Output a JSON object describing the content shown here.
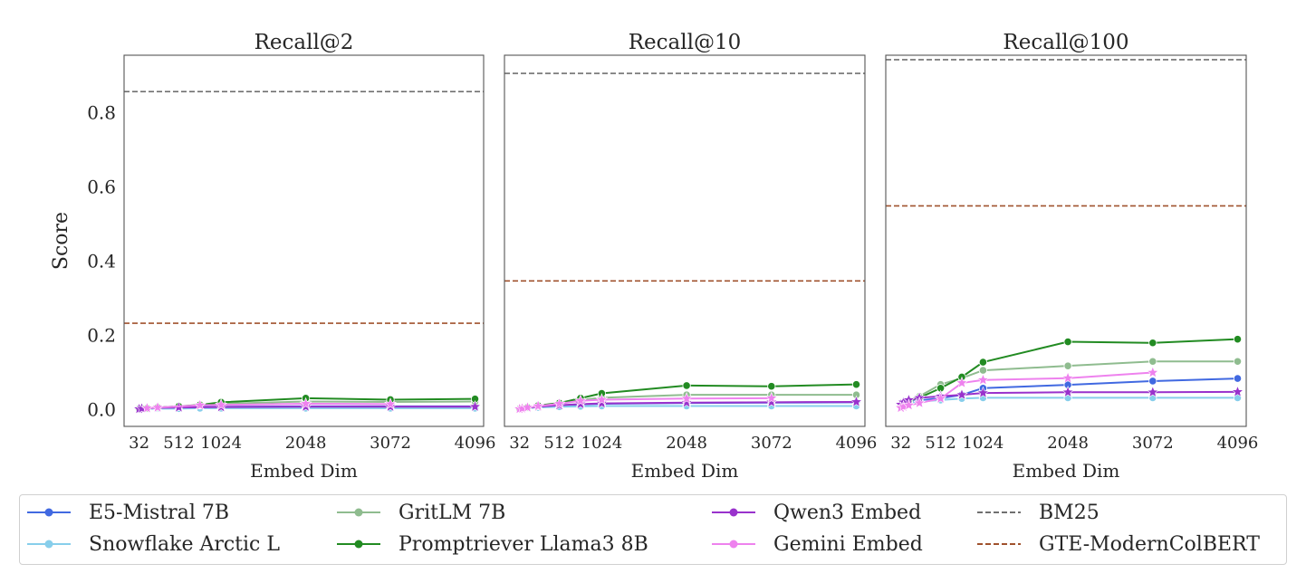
{
  "chart_data": [
    {
      "type": "line",
      "title": "Recall@2",
      "xlabel": "Embed Dim",
      "ylabel": "Score",
      "xlim": [
        -150,
        4200
      ],
      "ylim": [
        -0.045,
        0.955
      ],
      "x_ticks": [
        32,
        512,
        1024,
        2048,
        3072,
        4096
      ],
      "y_ticks": [
        0.0,
        0.2,
        0.4,
        0.6,
        0.8
      ],
      "y_tick_labels": [
        "0.0",
        "0.2",
        "0.4",
        "0.6",
        "0.8"
      ],
      "grid": false,
      "series": [
        {
          "name": "E5-Mistral 7B",
          "color": "#4169e1",
          "marker": "circle",
          "x": [
            32,
            64,
            128,
            256,
            512,
            768,
            1024,
            2048,
            3072,
            4096
          ],
          "y": [
            0.002,
            0.003,
            0.004,
            0.005,
            0.006,
            0.007,
            0.008,
            0.009,
            0.009,
            0.009
          ]
        },
        {
          "name": "Snowflake Arctic L",
          "color": "#87ceeb",
          "marker": "circle",
          "x": [
            32,
            64,
            128,
            256,
            512,
            768,
            1024,
            2048,
            3072,
            4096
          ],
          "y": [
            0.001,
            0.002,
            0.002,
            0.003,
            0.003,
            0.004,
            0.004,
            0.004,
            0.004,
            0.004
          ]
        },
        {
          "name": "GritLM 7B",
          "color": "#8fbc8f",
          "marker": "circle",
          "x": [
            32,
            64,
            128,
            256,
            512,
            768,
            1024,
            2048,
            3072,
            4096
          ],
          "y": [
            0.002,
            0.003,
            0.004,
            0.006,
            0.008,
            0.012,
            0.016,
            0.022,
            0.021,
            0.022
          ]
        },
        {
          "name": "Promptriever Llama3 8B",
          "color": "#228b22",
          "marker": "circle",
          "x": [
            32,
            64,
            128,
            256,
            512,
            768,
            1024,
            2048,
            3072,
            4096
          ],
          "y": [
            0.002,
            0.003,
            0.004,
            0.006,
            0.009,
            0.013,
            0.02,
            0.031,
            0.027,
            0.029
          ]
        },
        {
          "name": "Qwen3 Embed",
          "color": "#9932cc",
          "marker": "star",
          "x": [
            32,
            64,
            128,
            256,
            512,
            1024,
            2048,
            3072,
            4096
          ],
          "y": [
            0.002,
            0.003,
            0.004,
            0.005,
            0.006,
            0.007,
            0.008,
            0.008,
            0.008
          ]
        },
        {
          "name": "Gemini Embed",
          "color": "#ee82ee",
          "marker": "star",
          "x": [
            128,
            256,
            768,
            1024,
            2048,
            3072
          ],
          "y": [
            0.004,
            0.006,
            0.012,
            0.013,
            0.016,
            0.015
          ]
        }
      ],
      "baselines": [
        {
          "name": "BM25",
          "color": "#707070",
          "value": 0.857
        },
        {
          "name": "GTE-ModernColBERT",
          "color": "#a0522d",
          "value": 0.233
        }
      ]
    },
    {
      "type": "line",
      "title": "Recall@10",
      "xlabel": "Embed Dim",
      "ylabel": "",
      "xlim": [
        -150,
        4200
      ],
      "ylim": [
        -0.045,
        0.955
      ],
      "x_ticks": [
        32,
        512,
        1024,
        2048,
        3072,
        4096
      ],
      "grid": false,
      "series": [
        {
          "name": "E5-Mistral 7B",
          "color": "#4169e1",
          "marker": "circle",
          "x": [
            32,
            64,
            128,
            256,
            512,
            768,
            1024,
            2048,
            3072,
            4096
          ],
          "y": [
            0.002,
            0.003,
            0.005,
            0.008,
            0.011,
            0.014,
            0.016,
            0.018,
            0.019,
            0.02
          ]
        },
        {
          "name": "Snowflake Arctic L",
          "color": "#87ceeb",
          "marker": "circle",
          "x": [
            32,
            64,
            128,
            256,
            512,
            768,
            1024,
            2048,
            3072,
            4096
          ],
          "y": [
            0.001,
            0.002,
            0.004,
            0.006,
            0.008,
            0.009,
            0.01,
            0.01,
            0.01,
            0.01
          ]
        },
        {
          "name": "GritLM 7B",
          "color": "#8fbc8f",
          "marker": "circle",
          "x": [
            32,
            64,
            128,
            256,
            512,
            768,
            1024,
            2048,
            3072,
            4096
          ],
          "y": [
            0.002,
            0.003,
            0.006,
            0.01,
            0.016,
            0.026,
            0.032,
            0.04,
            0.04,
            0.04
          ]
        },
        {
          "name": "Promptriever Llama3 8B",
          "color": "#228b22",
          "marker": "circle",
          "x": [
            32,
            64,
            128,
            256,
            512,
            768,
            1024,
            2048,
            3072,
            4096
          ],
          "y": [
            0.002,
            0.003,
            0.006,
            0.011,
            0.018,
            0.031,
            0.044,
            0.065,
            0.063,
            0.068
          ]
        },
        {
          "name": "Qwen3 Embed",
          "color": "#9932cc",
          "marker": "star",
          "x": [
            32,
            64,
            128,
            256,
            512,
            768,
            1024,
            2048,
            3072,
            4096
          ],
          "y": [
            0.002,
            0.003,
            0.005,
            0.008,
            0.012,
            0.015,
            0.017,
            0.019,
            0.02,
            0.021
          ]
        },
        {
          "name": "Gemini Embed",
          "color": "#ee82ee",
          "marker": "star",
          "x": [
            32,
            64,
            128,
            256,
            512,
            768,
            1024,
            2048,
            3072
          ],
          "y": [
            0.002,
            0.003,
            0.006,
            0.01,
            0.016,
            0.024,
            0.027,
            0.03,
            0.031
          ]
        }
      ],
      "baselines": [
        {
          "name": "BM25",
          "color": "#707070",
          "value": 0.906
        },
        {
          "name": "GTE-ModernColBERT",
          "color": "#a0522d",
          "value": 0.347
        }
      ]
    },
    {
      "type": "line",
      "title": "Recall@100",
      "xlabel": "Embed Dim",
      "ylabel": "",
      "xlim": [
        -150,
        4200
      ],
      "ylim": [
        -0.045,
        0.955
      ],
      "x_ticks": [
        32,
        512,
        1024,
        2048,
        3072,
        4096
      ],
      "grid": false,
      "series": [
        {
          "name": "E5-Mistral 7B",
          "color": "#4169e1",
          "marker": "circle",
          "x": [
            32,
            64,
            128,
            256,
            512,
            768,
            1024,
            2048,
            3072,
            4096
          ],
          "y": [
            0.012,
            0.016,
            0.02,
            0.025,
            0.031,
            0.04,
            0.058,
            0.067,
            0.077,
            0.084
          ]
        },
        {
          "name": "Snowflake Arctic L",
          "color": "#87ceeb",
          "marker": "circle",
          "x": [
            32,
            64,
            128,
            256,
            512,
            768,
            1024,
            2048,
            3072,
            4096
          ],
          "y": [
            0.01,
            0.014,
            0.018,
            0.022,
            0.026,
            0.03,
            0.032,
            0.032,
            0.032,
            0.032
          ]
        },
        {
          "name": "GritLM 7B",
          "color": "#8fbc8f",
          "marker": "circle",
          "x": [
            32,
            64,
            128,
            256,
            512,
            768,
            1024,
            2048,
            3072,
            4096
          ],
          "y": [
            0.012,
            0.018,
            0.026,
            0.036,
            0.068,
            0.085,
            0.106,
            0.118,
            0.13,
            0.13
          ]
        },
        {
          "name": "Promptriever Llama3 8B",
          "color": "#228b22",
          "marker": "circle",
          "x": [
            32,
            64,
            128,
            256,
            512,
            768,
            1024,
            2048,
            3072,
            4096
          ],
          "y": [
            0.01,
            0.016,
            0.024,
            0.032,
            0.058,
            0.088,
            0.128,
            0.183,
            0.18,
            0.19
          ]
        },
        {
          "name": "Qwen3 Embed",
          "color": "#9932cc",
          "marker": "star",
          "x": [
            32,
            64,
            128,
            256,
            512,
            768,
            1024,
            2048,
            3072,
            4096
          ],
          "y": [
            0.014,
            0.02,
            0.026,
            0.032,
            0.036,
            0.04,
            0.045,
            0.047,
            0.047,
            0.048
          ]
        },
        {
          "name": "Gemini Embed",
          "color": "#ee82ee",
          "marker": "star",
          "x": [
            32,
            64,
            128,
            256,
            512,
            768,
            1024,
            2048,
            3072
          ],
          "y": [
            0.005,
            0.008,
            0.012,
            0.018,
            0.03,
            0.072,
            0.08,
            0.085,
            0.1
          ]
        }
      ],
      "baselines": [
        {
          "name": "BM25",
          "color": "#707070",
          "value": 0.943
        },
        {
          "name": "GTE-ModernColBERT",
          "color": "#a0522d",
          "value": 0.549
        }
      ]
    }
  ],
  "legend": {
    "placement": "bottom",
    "entries": [
      {
        "label": "E5-Mistral 7B",
        "color": "#4169e1",
        "style": "line-marker"
      },
      {
        "label": "Snowflake Arctic L",
        "color": "#87ceeb",
        "style": "line-marker"
      },
      {
        "label": "GritLM 7B",
        "color": "#8fbc8f",
        "style": "line-marker"
      },
      {
        "label": "Promptriever Llama3 8B",
        "color": "#228b22",
        "style": "line-marker"
      },
      {
        "label": "Qwen3 Embed",
        "color": "#9932cc",
        "style": "line-marker"
      },
      {
        "label": "Gemini Embed",
        "color": "#ee82ee",
        "style": "line-marker"
      },
      {
        "label": "BM25",
        "color": "#707070",
        "style": "dashed"
      },
      {
        "label": "GTE-ModernColBERT",
        "color": "#a0522d",
        "style": "dashed"
      }
    ]
  }
}
